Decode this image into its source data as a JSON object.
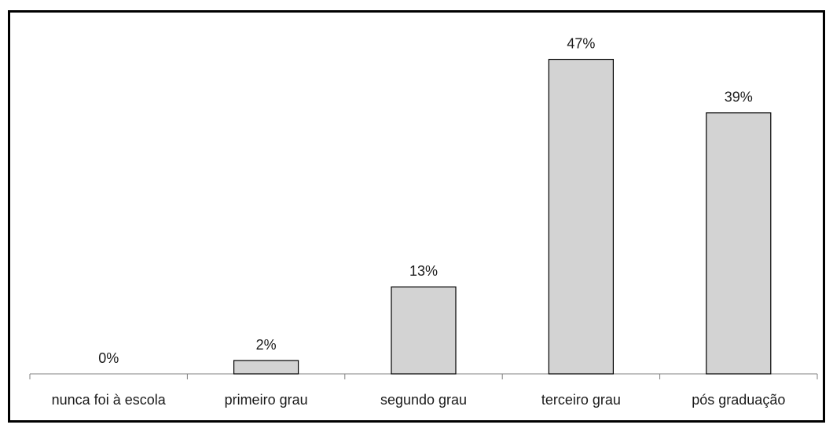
{
  "chart_data": {
    "type": "bar",
    "categories": [
      "nunca foi à escola",
      "primeiro grau",
      "segundo grau",
      "terceiro grau",
      "pós graduação"
    ],
    "values": [
      0,
      2,
      13,
      47,
      39
    ],
    "data_labels": [
      "0%",
      "2%",
      "13%",
      "47%",
      "39%"
    ],
    "title": "",
    "xlabel": "",
    "ylabel": "",
    "ylim": [
      0,
      50
    ],
    "unit": "%",
    "grid": false,
    "legend": "none",
    "bar_color": "#d3d3d3",
    "bar_border_color": "#000000",
    "axis_color": "#808080"
  }
}
